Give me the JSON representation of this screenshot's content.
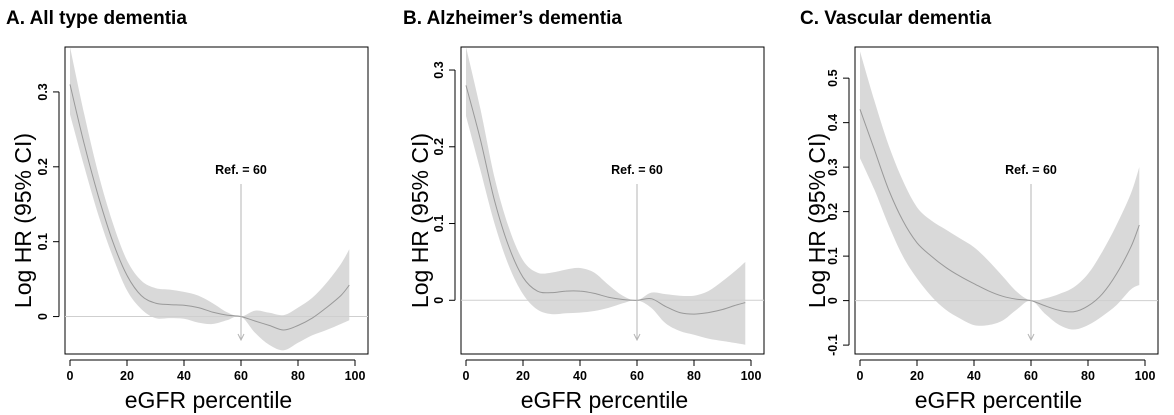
{
  "chart_data": [
    {
      "type": "area",
      "title": "A. All type dementia",
      "xlabel": "eGFR percentile",
      "ylabel": "Log HR (95% CI)",
      "xlim": [
        0,
        100
      ],
      "ylim": [
        -0.05,
        0.36
      ],
      "xticks": [
        0,
        20,
        40,
        60,
        80,
        100
      ],
      "xtick_labels": [
        "0",
        "20",
        "40",
        "60",
        "80",
        "100"
      ],
      "yticks": [
        0,
        0.1,
        0.2,
        0.3
      ],
      "ytick_labels": [
        "0",
        "0.1",
        "0.2",
        "0.3"
      ],
      "ref_label": "Ref. = 60",
      "ref_x": 60,
      "series": [
        {
          "x": [
            0,
            5,
            10,
            15,
            20,
            25,
            30,
            35,
            40,
            45,
            50,
            55,
            60,
            65,
            70,
            75,
            80,
            85,
            90,
            95,
            98
          ],
          "y": [
            0.31,
            0.23,
            0.16,
            0.1,
            0.055,
            0.028,
            0.018,
            0.016,
            0.015,
            0.012,
            0.006,
            0.002,
            0.0,
            -0.006,
            -0.012,
            -0.018,
            -0.012,
            -0.002,
            0.012,
            0.028,
            0.042
          ],
          "lower": [
            0.27,
            0.2,
            0.135,
            0.08,
            0.035,
            0.01,
            -0.002,
            -0.002,
            -0.003,
            -0.008,
            -0.01,
            -0.005,
            0.0,
            -0.022,
            -0.038,
            -0.045,
            -0.035,
            -0.025,
            -0.018,
            -0.01,
            -0.005
          ],
          "upper": [
            0.36,
            0.27,
            0.19,
            0.125,
            0.075,
            0.048,
            0.038,
            0.036,
            0.033,
            0.028,
            0.018,
            0.006,
            0.0,
            0.008,
            0.005,
            0.002,
            0.012,
            0.025,
            0.045,
            0.07,
            0.09
          ]
        }
      ]
    },
    {
      "type": "area",
      "title": "B. Alzheimer’s dementia",
      "xlabel": "eGFR percentile",
      "ylabel": "Log HR (95% CI)",
      "xlim": [
        0,
        100
      ],
      "ylim": [
        -0.07,
        0.33
      ],
      "xticks": [
        0,
        20,
        40,
        60,
        80,
        100
      ],
      "xtick_labels": [
        "0",
        "20",
        "40",
        "60",
        "80",
        "100"
      ],
      "yticks": [
        0,
        0.1,
        0.2,
        0.3
      ],
      "ytick_labels": [
        "0",
        "0.1",
        "0.2",
        "0.3"
      ],
      "ref_label": "Ref. = 60",
      "ref_x": 60,
      "series": [
        {
          "x": [
            0,
            5,
            10,
            15,
            20,
            25,
            30,
            35,
            40,
            45,
            50,
            55,
            60,
            65,
            70,
            75,
            80,
            85,
            90,
            95,
            98
          ],
          "y": [
            0.28,
            0.21,
            0.13,
            0.07,
            0.03,
            0.012,
            0.01,
            0.012,
            0.012,
            0.009,
            0.004,
            0.001,
            0.0,
            0.002,
            -0.008,
            -0.016,
            -0.018,
            -0.016,
            -0.012,
            -0.006,
            -0.003
          ],
          "lower": [
            0.24,
            0.17,
            0.1,
            0.045,
            0.008,
            -0.012,
            -0.018,
            -0.017,
            -0.016,
            -0.014,
            -0.01,
            -0.004,
            0.0,
            -0.01,
            -0.03,
            -0.04,
            -0.045,
            -0.05,
            -0.053,
            -0.056,
            -0.058
          ],
          "upper": [
            0.33,
            0.25,
            0.16,
            0.095,
            0.052,
            0.036,
            0.036,
            0.04,
            0.042,
            0.036,
            0.02,
            0.006,
            0.0,
            0.01,
            0.008,
            0.006,
            0.006,
            0.012,
            0.025,
            0.04,
            0.05
          ]
        }
      ]
    },
    {
      "type": "area",
      "title": "C. Vascular dementia",
      "xlabel": "eGFR percentile",
      "ylabel": "Log HR (95% CI)",
      "xlim": [
        0,
        100
      ],
      "ylim": [
        -0.12,
        0.57
      ],
      "xticks": [
        0,
        20,
        40,
        60,
        80,
        100
      ],
      "xtick_labels": [
        "0",
        "20",
        "40",
        "60",
        "80",
        "100"
      ],
      "yticks": [
        -0.1,
        0,
        0.1,
        0.2,
        0.3,
        0.4,
        0.5
      ],
      "ytick_labels": [
        "-0.1",
        "0",
        "0.1",
        "0.2",
        "0.3",
        "0.4",
        "0.5"
      ],
      "ref_label": "Ref. = 60",
      "ref_x": 60,
      "series": [
        {
          "x": [
            0,
            5,
            10,
            15,
            20,
            25,
            30,
            35,
            40,
            45,
            50,
            55,
            60,
            65,
            70,
            75,
            80,
            85,
            90,
            95,
            98
          ],
          "y": [
            0.43,
            0.34,
            0.25,
            0.18,
            0.13,
            0.1,
            0.075,
            0.055,
            0.038,
            0.022,
            0.01,
            0.003,
            0.0,
            -0.012,
            -0.022,
            -0.025,
            -0.012,
            0.015,
            0.06,
            0.12,
            0.17
          ],
          "lower": [
            0.32,
            0.25,
            0.17,
            0.1,
            0.05,
            0.01,
            -0.02,
            -0.04,
            -0.055,
            -0.055,
            -0.045,
            -0.02,
            0.0,
            -0.03,
            -0.055,
            -0.065,
            -0.055,
            -0.035,
            -0.01,
            0.025,
            0.035
          ],
          "upper": [
            0.56,
            0.45,
            0.35,
            0.27,
            0.21,
            0.18,
            0.16,
            0.14,
            0.12,
            0.09,
            0.055,
            0.02,
            0.0,
            0.005,
            0.015,
            0.03,
            0.06,
            0.11,
            0.17,
            0.24,
            0.3
          ]
        }
      ]
    }
  ],
  "colors": {
    "band": "#d9d9d9",
    "line": "#999999",
    "zero_line": "#cfcfcf",
    "ref_line": "#b5b5b5",
    "axis": "#000000"
  }
}
